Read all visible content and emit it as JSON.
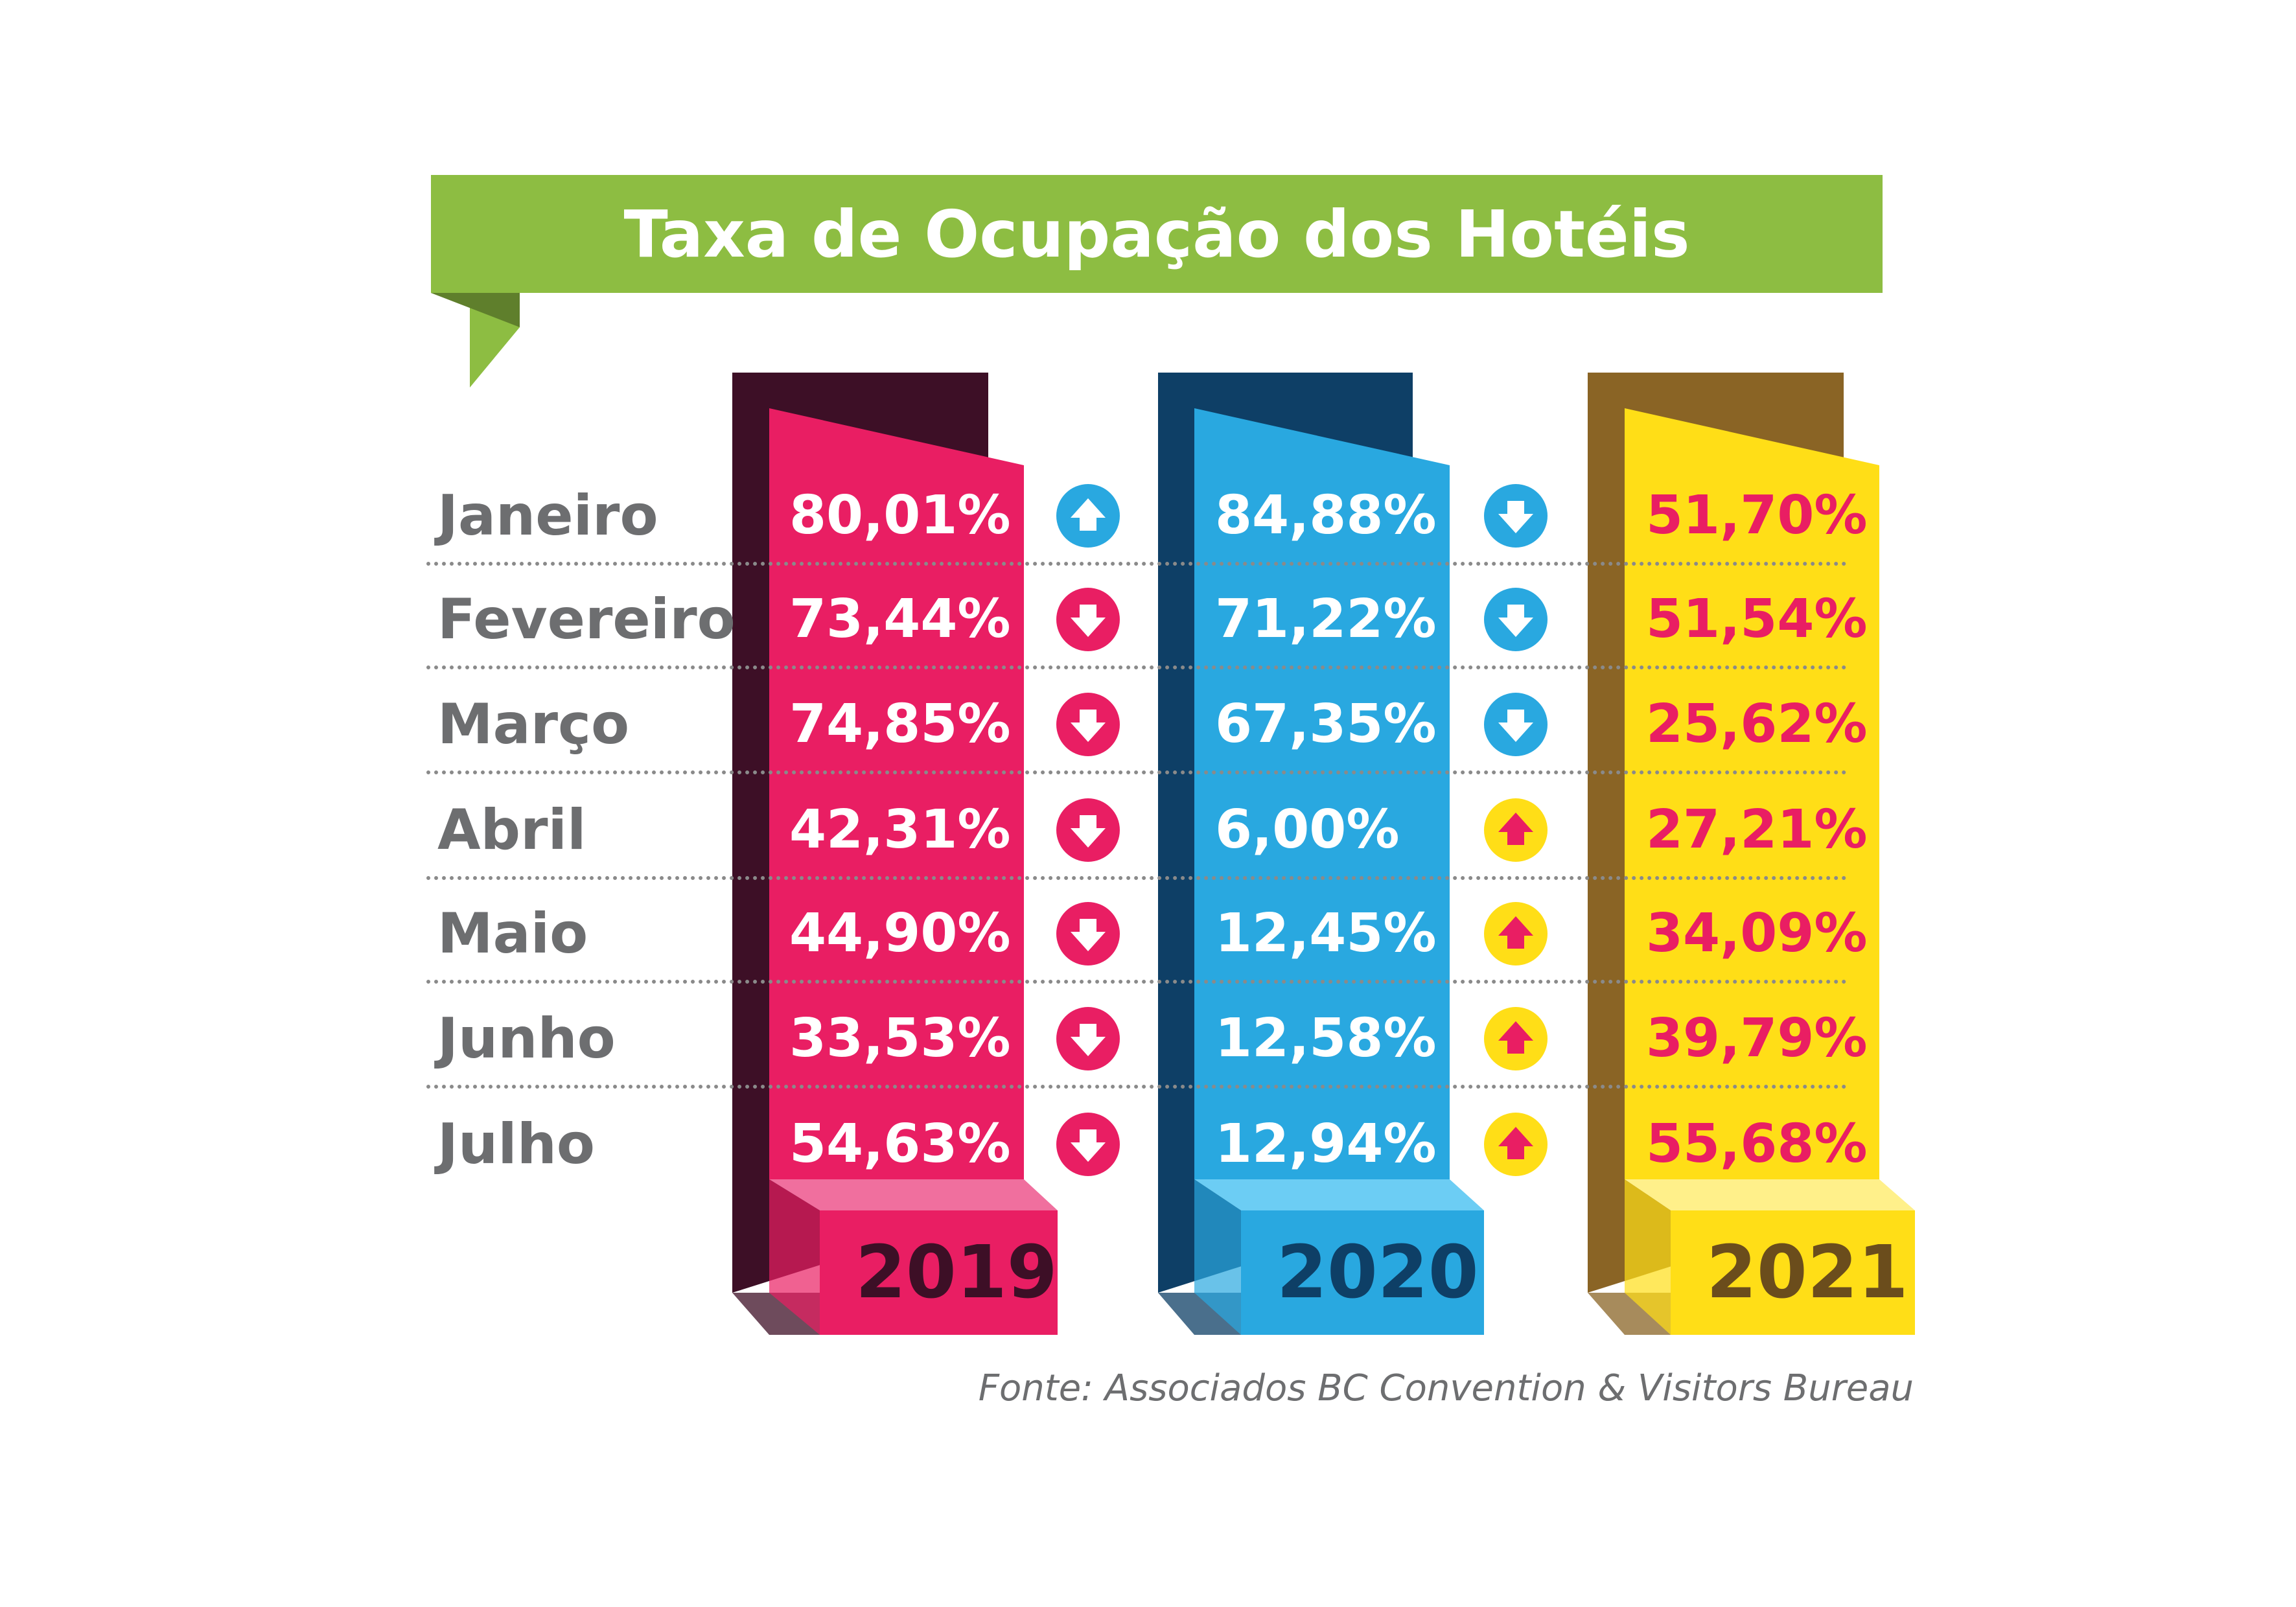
{
  "title": "Taxa de Ocupação dos Hotéis",
  "source": "Fonte: Associados BC Convention & Visitors Bureau",
  "colors": {
    "banner": "#8dbd42",
    "banner_fold": "#5f7f2c",
    "pink": "#e91e63",
    "pink_dark": "#3d0f26",
    "blue": "#29a8e0",
    "blue_dark": "#0e3f66",
    "yellow": "#ffde17",
    "yellow_dark": "#8a6425",
    "month_text": "#6d6e70"
  },
  "chart_data": {
    "type": "table",
    "title": "Taxa de Ocupação dos Hotéis",
    "categories": [
      "Janeiro",
      "Fevereiro",
      "Março",
      "Abril",
      "Maio",
      "Junho",
      "Julho"
    ],
    "series": [
      {
        "name": "2019",
        "values": [
          80.01,
          73.44,
          74.85,
          42.31,
          44.9,
          33.53,
          54.63
        ],
        "labels": [
          "80,01%",
          "73,44%",
          "74,85%",
          "42,31%",
          "44,90%",
          "33,53%",
          "54,63%"
        ]
      },
      {
        "name": "2020",
        "values": [
          84.88,
          71.22,
          67.35,
          6.0,
          12.45,
          12.58,
          12.94
        ],
        "labels": [
          "84,88%",
          "71,22%",
          "67,35%",
          "6,00%",
          "12,45%",
          "12,58%",
          "12,94%"
        ]
      },
      {
        "name": "2021",
        "values": [
          51.7,
          51.54,
          25.62,
          27.21,
          34.09,
          39.79,
          55.68
        ],
        "labels": [
          "51,70%",
          "51,54%",
          "25,62%",
          "27,21%",
          "34,09%",
          "39,79%",
          "55,68%"
        ]
      }
    ],
    "change_2019_to_2020": [
      "up",
      "down",
      "down",
      "down",
      "down",
      "down",
      "down"
    ],
    "change_2020_to_2021": [
      "down",
      "down",
      "down",
      "up",
      "up",
      "up",
      "up"
    ]
  }
}
